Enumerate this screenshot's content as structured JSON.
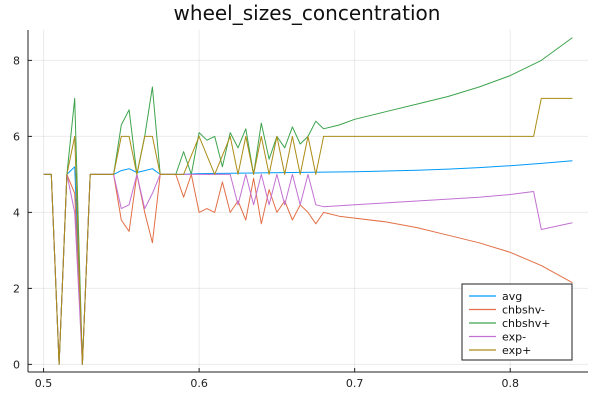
{
  "chart_data": {
    "type": "line",
    "title": "wheel_sizes_concentration",
    "xlabel": "",
    "ylabel": "",
    "xlim": [
      0.49,
      0.85
    ],
    "ylim": [
      -0.2,
      8.8
    ],
    "xticks": [
      0.5,
      0.6,
      0.7,
      0.8
    ],
    "xtick_labels": [
      "0.5",
      "0.6",
      "0.7",
      "0.8"
    ],
    "yticks": [
      0,
      2,
      4,
      6,
      8
    ],
    "ytick_labels": [
      "0",
      "2",
      "4",
      "6",
      "8"
    ],
    "grid": true,
    "legend_position": "bottom-right",
    "series": [
      {
        "name": "avg",
        "color": "#009af9",
        "x": [
          0.5,
          0.505,
          0.51,
          0.515,
          0.52,
          0.525,
          0.53,
          0.535,
          0.54,
          0.545,
          0.55,
          0.555,
          0.56,
          0.565,
          0.57,
          0.575,
          0.58,
          0.585,
          0.59,
          0.6,
          0.62,
          0.64,
          0.66,
          0.68,
          0.7,
          0.72,
          0.74,
          0.76,
          0.78,
          0.8,
          0.82,
          0.84
        ],
        "y": [
          5.0,
          5.0,
          0.0,
          5.0,
          5.2,
          0.0,
          5.0,
          5.0,
          5.0,
          5.0,
          5.1,
          5.15,
          5.05,
          5.1,
          5.15,
          5.0,
          5.0,
          5.0,
          5.0,
          5.02,
          5.03,
          5.04,
          5.05,
          5.06,
          5.07,
          5.09,
          5.11,
          5.14,
          5.18,
          5.23,
          5.29,
          5.36
        ]
      },
      {
        "name": "chbshv-",
        "color": "#e26f46",
        "x": [
          0.5,
          0.505,
          0.51,
          0.515,
          0.52,
          0.525,
          0.53,
          0.535,
          0.54,
          0.545,
          0.55,
          0.555,
          0.56,
          0.565,
          0.57,
          0.575,
          0.58,
          0.585,
          0.59,
          0.595,
          0.6,
          0.605,
          0.61,
          0.615,
          0.62,
          0.625,
          0.63,
          0.635,
          0.64,
          0.645,
          0.65,
          0.655,
          0.66,
          0.665,
          0.67,
          0.675,
          0.68,
          0.69,
          0.7,
          0.72,
          0.74,
          0.76,
          0.78,
          0.8,
          0.82,
          0.84
        ],
        "y": [
          5.0,
          5.0,
          0.0,
          5.0,
          4.5,
          0.0,
          5.0,
          5.0,
          5.0,
          5.0,
          3.8,
          3.5,
          5.0,
          4.0,
          3.2,
          5.0,
          5.0,
          5.0,
          4.4,
          5.0,
          4.0,
          4.1,
          4.0,
          4.8,
          4.0,
          4.3,
          3.8,
          4.9,
          3.7,
          4.6,
          4.0,
          4.3,
          3.8,
          4.2,
          4.0,
          3.7,
          4.0,
          3.9,
          3.85,
          3.75,
          3.6,
          3.4,
          3.2,
          2.95,
          2.6,
          2.15
        ]
      },
      {
        "name": "chbshv+",
        "color": "#3da44d",
        "x": [
          0.5,
          0.505,
          0.51,
          0.515,
          0.52,
          0.525,
          0.53,
          0.535,
          0.54,
          0.545,
          0.55,
          0.555,
          0.56,
          0.565,
          0.57,
          0.575,
          0.58,
          0.585,
          0.59,
          0.595,
          0.6,
          0.605,
          0.61,
          0.615,
          0.62,
          0.625,
          0.63,
          0.635,
          0.64,
          0.645,
          0.65,
          0.655,
          0.66,
          0.665,
          0.67,
          0.675,
          0.68,
          0.69,
          0.7,
          0.72,
          0.74,
          0.76,
          0.78,
          0.8,
          0.82,
          0.84
        ],
        "y": [
          5.0,
          5.0,
          0.0,
          5.0,
          7.0,
          0.0,
          5.0,
          5.0,
          5.0,
          5.0,
          6.3,
          6.7,
          5.0,
          6.0,
          7.3,
          5.0,
          5.0,
          5.0,
          5.6,
          5.0,
          6.1,
          5.9,
          6.0,
          5.2,
          6.1,
          5.7,
          6.2,
          5.0,
          6.35,
          5.4,
          6.0,
          5.7,
          6.25,
          5.8,
          6.0,
          6.4,
          6.2,
          6.3,
          6.45,
          6.65,
          6.85,
          7.05,
          7.3,
          7.6,
          8.0,
          8.6
        ]
      },
      {
        "name": "exp-",
        "color": "#c271d2",
        "x": [
          0.5,
          0.505,
          0.51,
          0.515,
          0.52,
          0.525,
          0.53,
          0.535,
          0.54,
          0.545,
          0.55,
          0.555,
          0.56,
          0.565,
          0.57,
          0.575,
          0.58,
          0.59,
          0.6,
          0.61,
          0.62,
          0.625,
          0.63,
          0.635,
          0.64,
          0.645,
          0.65,
          0.655,
          0.66,
          0.665,
          0.67,
          0.675,
          0.68,
          0.7,
          0.72,
          0.74,
          0.76,
          0.78,
          0.8,
          0.815,
          0.82,
          0.84
        ],
        "y": [
          5.0,
          5.0,
          0.0,
          5.0,
          4.0,
          0.0,
          5.0,
          5.0,
          5.0,
          5.0,
          4.1,
          4.2,
          5.0,
          4.1,
          4.5,
          5.0,
          5.0,
          5.0,
          5.0,
          5.0,
          5.0,
          4.2,
          5.0,
          4.2,
          5.0,
          4.2,
          5.0,
          4.2,
          5.0,
          4.2,
          5.0,
          4.2,
          4.15,
          4.2,
          4.25,
          4.3,
          4.35,
          4.4,
          4.47,
          4.55,
          3.55,
          3.73
        ]
      },
      {
        "name": "exp+",
        "color": "#ac8d18",
        "x": [
          0.5,
          0.505,
          0.51,
          0.515,
          0.52,
          0.525,
          0.53,
          0.535,
          0.54,
          0.545,
          0.55,
          0.555,
          0.56,
          0.565,
          0.57,
          0.575,
          0.58,
          0.59,
          0.6,
          0.61,
          0.62,
          0.625,
          0.63,
          0.635,
          0.64,
          0.645,
          0.65,
          0.655,
          0.66,
          0.665,
          0.67,
          0.675,
          0.68,
          0.7,
          0.72,
          0.74,
          0.76,
          0.78,
          0.8,
          0.815,
          0.82,
          0.84
        ],
        "y": [
          5.0,
          5.0,
          0.0,
          5.0,
          6.0,
          0.0,
          5.0,
          5.0,
          5.0,
          5.0,
          6.0,
          6.0,
          5.0,
          6.0,
          6.0,
          5.0,
          5.0,
          5.0,
          6.0,
          5.0,
          6.0,
          5.0,
          6.0,
          5.0,
          6.0,
          5.0,
          6.0,
          5.0,
          6.0,
          5.0,
          6.0,
          5.0,
          6.0,
          6.0,
          6.0,
          6.0,
          6.0,
          6.0,
          6.0,
          6.0,
          7.0,
          7.0
        ]
      }
    ]
  }
}
